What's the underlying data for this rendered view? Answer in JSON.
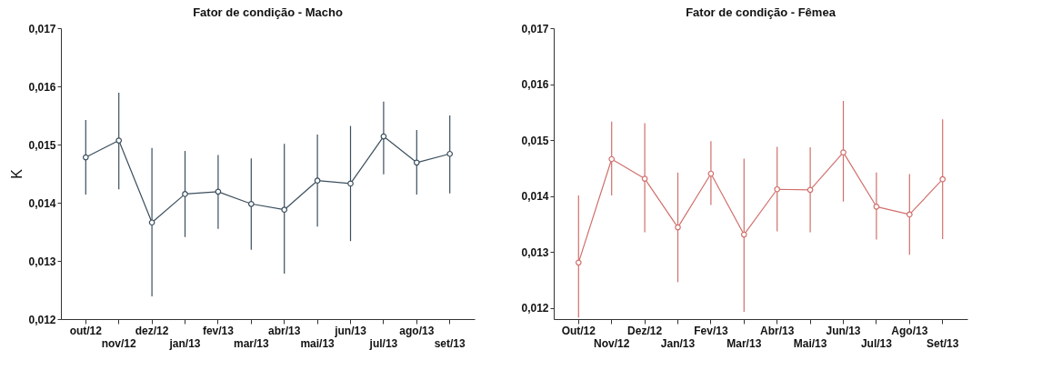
{
  "chart_data": [
    {
      "type": "line",
      "title": "Fator de condição - Macho",
      "ylabel": "K",
      "categories": [
        "out/12",
        "nov/12",
        "dez/12",
        "jan/13",
        "fev/13",
        "mar/13",
        "abr/13",
        "mai/13",
        "jun/13",
        "jul/13",
        "ago/13",
        "set/13"
      ],
      "series": [
        {
          "color": "#3b4f5e",
          "values": [
            0.01478,
            0.01507,
            0.01366,
            0.01415,
            0.01419,
            0.01398,
            0.01388,
            0.01438,
            0.01433,
            0.01514,
            0.01469,
            0.01484
          ],
          "errors": [
            [
              0.01414,
              0.01542
            ],
            [
              0.01423,
              0.01589
            ],
            [
              0.01239,
              0.01494
            ],
            [
              0.01341,
              0.01489
            ],
            [
              0.01355,
              0.01482
            ],
            [
              0.01319,
              0.01476
            ],
            [
              0.01278,
              0.01501
            ],
            [
              0.01359,
              0.01517
            ],
            [
              0.01334,
              0.01532
            ],
            [
              0.01449,
              0.01574
            ],
            [
              0.01414,
              0.01525
            ],
            [
              0.01416,
              0.0155
            ]
          ]
        }
      ],
      "ylim": [
        0.012,
        0.017
      ],
      "yticks": [
        {
          "value": 0.012,
          "label": "0,012"
        },
        {
          "value": 0.013,
          "label": "0,013"
        },
        {
          "value": 0.014,
          "label": "0,014"
        },
        {
          "value": 0.015,
          "label": "0,015"
        },
        {
          "value": 0.016,
          "label": "0,016"
        },
        {
          "value": 0.017,
          "label": "0,017"
        }
      ],
      "grid": false,
      "marker": "circle"
    },
    {
      "type": "line",
      "title": "Fator de condição - Fêmea",
      "categories": [
        "Out/12",
        "Nov/12",
        "Dez/12",
        "Jan/13",
        "Fev/13",
        "Mar/13",
        "Abr/13",
        "Mai/13",
        "Jun/13",
        "Jul/13",
        "Ago/13",
        "Set/13"
      ],
      "series": [
        {
          "color": "#d0706c",
          "values": [
            0.01281,
            0.01466,
            0.01431,
            0.01344,
            0.0144,
            0.01331,
            0.01412,
            0.01411,
            0.01478,
            0.01381,
            0.01367,
            0.0143
          ],
          "errors": [
            [
              0.01183,
              0.01401
            ],
            [
              0.01401,
              0.01533
            ],
            [
              0.01335,
              0.0153
            ],
            [
              0.01246,
              0.01442
            ],
            [
              0.01384,
              0.01498
            ],
            [
              0.01193,
              0.01467
            ],
            [
              0.01337,
              0.01488
            ],
            [
              0.01335,
              0.01487
            ],
            [
              0.0139,
              0.0157
            ],
            [
              0.01322,
              0.01442
            ],
            [
              0.01295,
              0.01439
            ],
            [
              0.01323,
              0.01537
            ]
          ]
        }
      ],
      "ylim": [
        0.0118,
        0.017
      ],
      "yticks": [
        {
          "value": 0.012,
          "label": "0,012"
        },
        {
          "value": 0.013,
          "label": "0,013"
        },
        {
          "value": 0.014,
          "label": "0,014"
        },
        {
          "value": 0.015,
          "label": "0,015"
        },
        {
          "value": 0.016,
          "label": "0,016"
        },
        {
          "value": 0.017,
          "label": "0,017"
        }
      ],
      "grid": false,
      "marker": "circle"
    }
  ]
}
